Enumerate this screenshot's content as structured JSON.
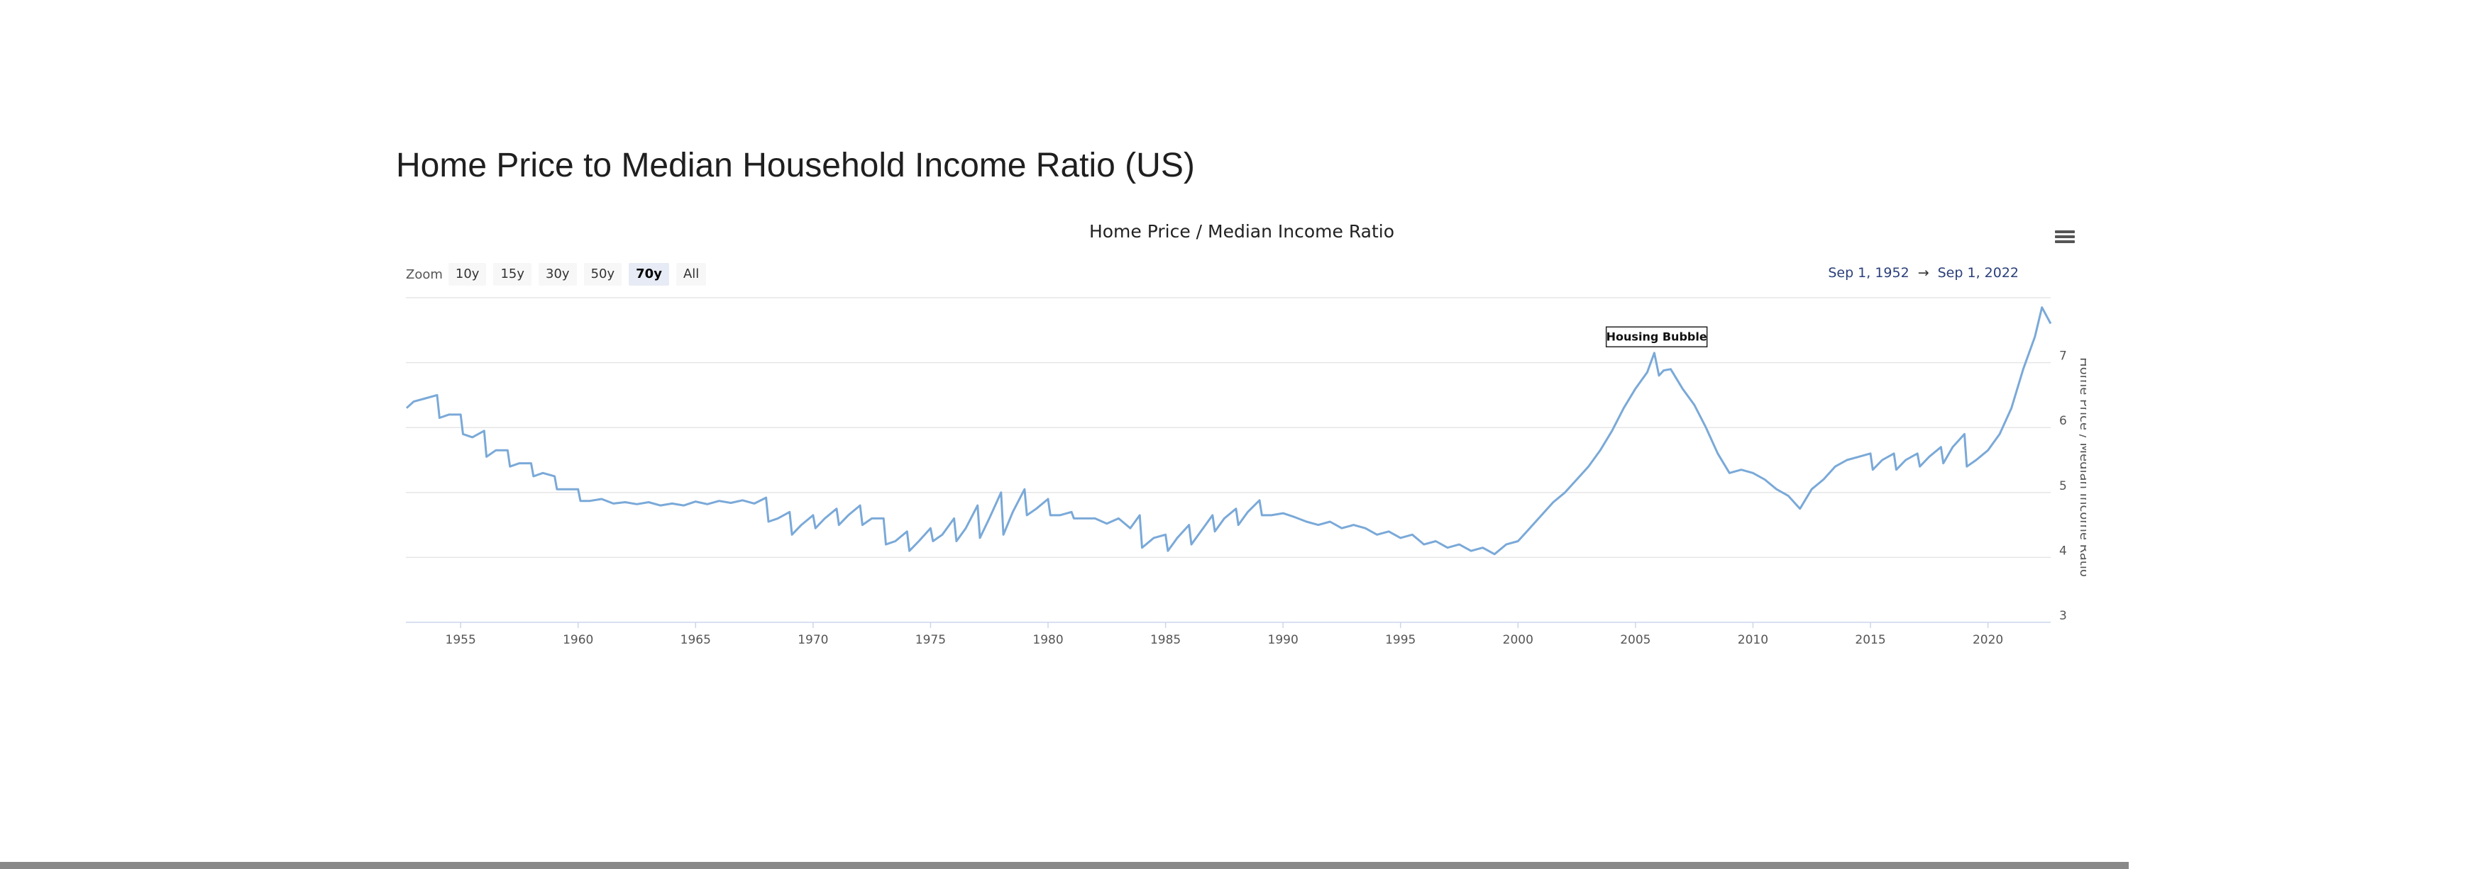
{
  "page": {
    "title": "Home Price to Median Household Income Ratio (US)"
  },
  "zoom": {
    "label": "Zoom",
    "buttons": [
      "10y",
      "15y",
      "30y",
      "50y",
      "70y",
      "All"
    ],
    "active": "70y"
  },
  "range": {
    "from": "Sep 1, 1952",
    "arrow": "→",
    "to": "Sep 1, 2022"
  },
  "colors": {
    "series": "#7aa9d8",
    "grid": "#e6e6e6",
    "axis": "#ccd6eb"
  },
  "icons": {
    "menu": "hamburger-menu-icon"
  },
  "chart_data": {
    "type": "line",
    "title": "Home Price / Median Income Ratio",
    "xlabel": "",
    "ylabel": "Home Price / Median Income Ratio",
    "xlim": [
      1952.67,
      2022.67
    ],
    "ylim": [
      3,
      8
    ],
    "yticks": [
      3,
      4,
      5,
      6,
      7
    ],
    "xticks": [
      1955,
      1960,
      1965,
      1970,
      1975,
      1980,
      1985,
      1990,
      1995,
      2000,
      2005,
      2010,
      2015,
      2020
    ],
    "grid": true,
    "y_axis_side": "right",
    "annotations": [
      {
        "text": "Housing Bubble",
        "x": 2005.9,
        "y": 7.2
      }
    ],
    "series": [
      {
        "x": [
          1952.7,
          1953.0,
          1953.5,
          1954.0,
          1954.1,
          1954.5,
          1955.0,
          1955.1,
          1955.5,
          1956.0,
          1956.1,
          1956.5,
          1957.0,
          1957.1,
          1957.5,
          1958.0,
          1958.1,
          1958.5,
          1959.0,
          1959.1,
          1959.5,
          1960.0,
          1960.1,
          1960.5,
          1961.0,
          1961.5,
          1962.0,
          1962.5,
          1963.0,
          1963.5,
          1964.0,
          1964.5,
          1965.0,
          1965.5,
          1966.0,
          1966.5,
          1967.0,
          1967.5,
          1968.0,
          1968.1,
          1968.5,
          1969.0,
          1969.1,
          1969.5,
          1970.0,
          1970.1,
          1970.5,
          1971.0,
          1971.1,
          1971.5,
          1972.0,
          1972.1,
          1972.5,
          1973.0,
          1973.1,
          1973.5,
          1974.0,
          1974.1,
          1974.5,
          1975.0,
          1975.1,
          1975.5,
          1976.0,
          1976.1,
          1976.5,
          1977.0,
          1977.1,
          1977.5,
          1978.0,
          1978.1,
          1978.5,
          1979.0,
          1979.1,
          1979.5,
          1980.0,
          1980.1,
          1980.5,
          1981.0,
          1981.1,
          1981.5,
          1982.0,
          1982.5,
          1983.0,
          1983.5,
          1983.9,
          1984.0,
          1984.5,
          1985.0,
          1985.1,
          1985.5,
          1986.0,
          1986.1,
          1986.5,
          1987.0,
          1987.1,
          1987.5,
          1988.0,
          1988.1,
          1988.5,
          1989.0,
          1989.1,
          1989.5,
          1990.0,
          1990.5,
          1991.0,
          1991.5,
          1992.0,
          1992.5,
          1993.0,
          1993.5,
          1994.0,
          1994.5,
          1995.0,
          1995.5,
          1996.0,
          1996.5,
          1997.0,
          1997.5,
          1998.0,
          1998.5,
          1999.0,
          1999.5,
          2000.0,
          2000.5,
          2001.0,
          2001.5,
          2002.0,
          2002.5,
          2003.0,
          2003.5,
          2004.0,
          2004.5,
          2005.0,
          2005.5,
          2005.8,
          2006.0,
          2006.2,
          2006.5,
          2007.0,
          2007.5,
          2008.0,
          2008.5,
          2009.0,
          2009.5,
          2010.0,
          2010.5,
          2011.0,
          2011.5,
          2012.0,
          2012.5,
          2013.0,
          2013.5,
          2014.0,
          2014.5,
          2015.0,
          2015.1,
          2015.5,
          2016.0,
          2016.1,
          2016.5,
          2017.0,
          2017.1,
          2017.5,
          2018.0,
          2018.1,
          2018.5,
          2019.0,
          2019.1,
          2019.5,
          2020.0,
          2020.5,
          2021.0,
          2021.5,
          2022.0,
          2022.3,
          2022.67
        ],
        "y": [
          6.3,
          6.4,
          6.45,
          6.5,
          6.15,
          6.2,
          6.2,
          5.9,
          5.85,
          5.95,
          5.55,
          5.65,
          5.65,
          5.4,
          5.45,
          5.45,
          5.25,
          5.3,
          5.25,
          5.05,
          5.05,
          5.05,
          4.87,
          4.87,
          4.9,
          4.83,
          4.85,
          4.82,
          4.85,
          4.8,
          4.83,
          4.8,
          4.86,
          4.82,
          4.87,
          4.84,
          4.88,
          4.83,
          4.92,
          4.55,
          4.6,
          4.7,
          4.35,
          4.5,
          4.65,
          4.45,
          4.6,
          4.75,
          4.5,
          4.65,
          4.8,
          4.5,
          4.6,
          4.6,
          4.2,
          4.25,
          4.4,
          4.1,
          4.25,
          4.45,
          4.25,
          4.35,
          4.6,
          4.25,
          4.45,
          4.8,
          4.3,
          4.6,
          5.0,
          4.35,
          4.7,
          5.05,
          4.65,
          4.75,
          4.9,
          4.65,
          4.65,
          4.7,
          4.6,
          4.6,
          4.6,
          4.52,
          4.6,
          4.45,
          4.65,
          4.15,
          4.3,
          4.35,
          4.1,
          4.3,
          4.5,
          4.2,
          4.4,
          4.65,
          4.4,
          4.6,
          4.75,
          4.5,
          4.7,
          4.88,
          4.65,
          4.65,
          4.68,
          4.62,
          4.55,
          4.5,
          4.55,
          4.45,
          4.5,
          4.45,
          4.35,
          4.4,
          4.3,
          4.35,
          4.2,
          4.25,
          4.15,
          4.2,
          4.1,
          4.15,
          4.05,
          4.2,
          4.25,
          4.45,
          4.65,
          4.85,
          5.0,
          5.2,
          5.4,
          5.65,
          5.95,
          6.3,
          6.6,
          6.85,
          7.15,
          6.8,
          6.88,
          6.9,
          6.6,
          6.35,
          6.0,
          5.6,
          5.3,
          5.35,
          5.3,
          5.2,
          5.05,
          4.95,
          4.75,
          5.05,
          5.2,
          5.4,
          5.5,
          5.55,
          5.6,
          5.35,
          5.5,
          5.6,
          5.35,
          5.5,
          5.6,
          5.4,
          5.55,
          5.7,
          5.45,
          5.7,
          5.9,
          5.4,
          5.5,
          5.65,
          5.9,
          6.3,
          6.9,
          7.4,
          7.85,
          7.6
        ]
      }
    ]
  }
}
